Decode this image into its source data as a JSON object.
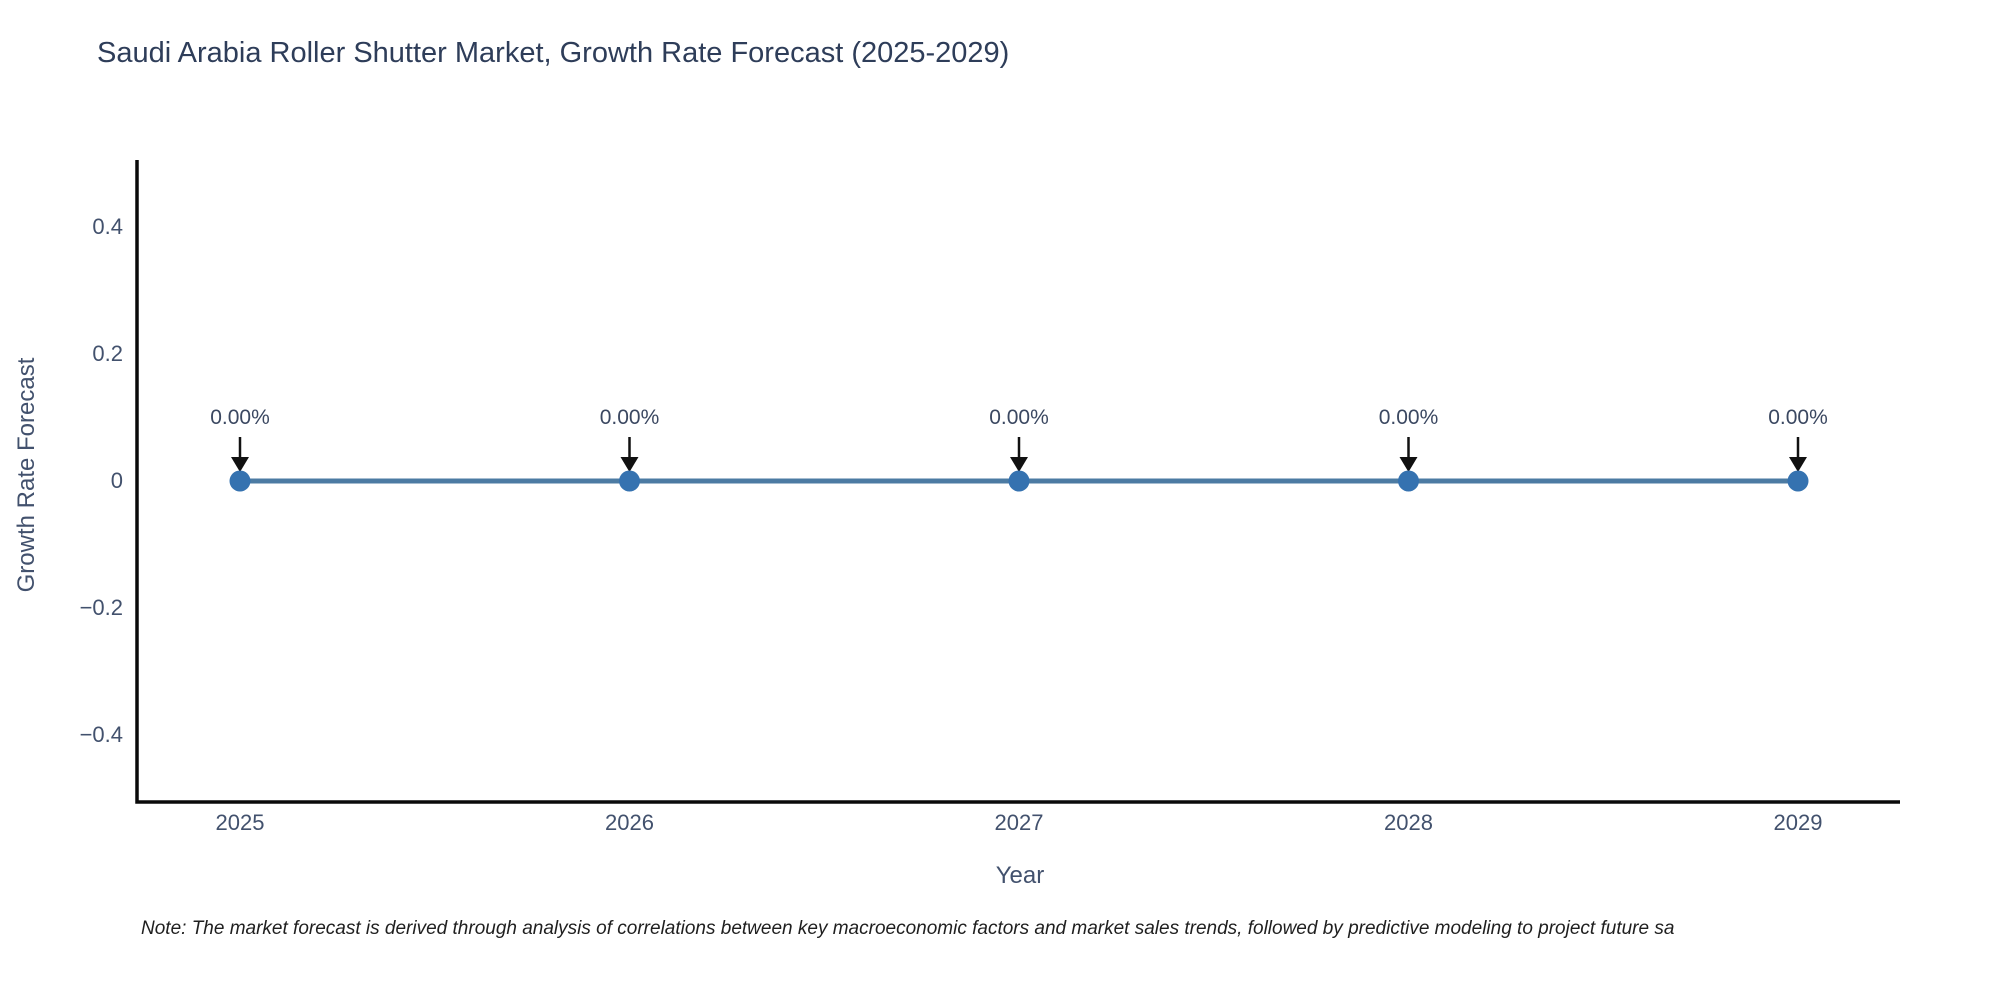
{
  "chart_data": {
    "type": "line",
    "title": "Saudi Arabia Roller Shutter Market, Growth Rate Forecast (2025-2029)",
    "xlabel": "Year",
    "ylabel": "Growth Rate Forecast",
    "x": [
      2025,
      2026,
      2027,
      2028,
      2029
    ],
    "x_tick_labels": [
      "2025",
      "2026",
      "2027",
      "2028",
      "2029"
    ],
    "series": [
      {
        "name": "Growth Rate Forecast",
        "values": [
          0,
          0,
          0,
          0,
          0
        ]
      }
    ],
    "point_labels": [
      "0.00%",
      "0.00%",
      "0.00%",
      "0.00%",
      "0.00%"
    ],
    "y_ticks": [
      0.4,
      0.2,
      0,
      -0.2,
      -0.4
    ],
    "y_tick_labels": [
      "0.4",
      "0.2",
      "0",
      "−0.2",
      "−0.4"
    ],
    "ylim": [
      -0.5,
      0.5
    ],
    "grid": false,
    "legend": "none",
    "colors": {
      "line": "#4c7ba3",
      "marker": "#3572b0",
      "arrow": "#111111",
      "axis": "#0a0a0a",
      "title_text": "#2e3d59",
      "tick_text": "#42516d"
    }
  },
  "note": {
    "text": "Note: The market forecast is derived through analysis of correlations between key macroeconomic factors and market sales trends, followed by predictive modeling to project future sa"
  }
}
